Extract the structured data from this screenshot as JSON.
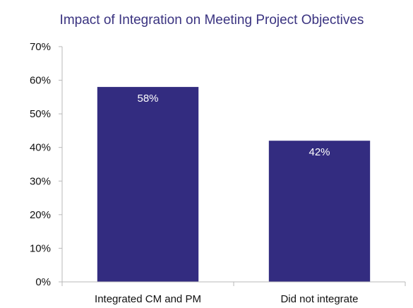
{
  "chart_data": {
    "type": "bar",
    "title": "Impact of Integration on Meeting Project Objectives",
    "categories": [
      "Integrated CM and PM",
      "Did not integrate"
    ],
    "values": [
      58,
      42
    ],
    "data_labels": [
      "58%",
      "42%"
    ],
    "ylim": [
      0,
      70
    ],
    "yticks": [
      0,
      10,
      20,
      30,
      40,
      50,
      60,
      70
    ],
    "ytick_labels": [
      "0%",
      "10%",
      "20%",
      "30%",
      "40%",
      "50%",
      "60%",
      "70%"
    ],
    "xlabel": "",
    "ylabel": "",
    "grid": false,
    "legend": "none",
    "bar_color": "#332c80"
  }
}
